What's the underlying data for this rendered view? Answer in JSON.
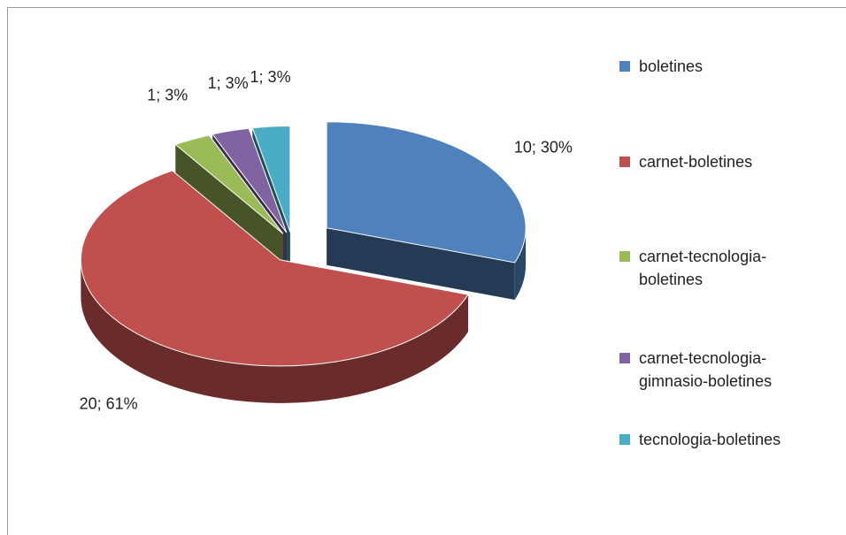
{
  "chart_data": {
    "type": "pie",
    "categories": [
      "boletines",
      "carnet-boletines",
      "carnet-tecnologia-boletines",
      "carnet-tecnologia-gimnasio-boletines",
      "tecnologia-boletines"
    ],
    "values": [
      10,
      20,
      1,
      1,
      1
    ],
    "value_labels": [
      "10; 30%",
      "20; 61%",
      "1; 3%",
      "1; 3%",
      "1; 3%"
    ],
    "colors": [
      "#4f81bd",
      "#c0504d",
      "#9bbb59",
      "#8064a2",
      "#4bacc6"
    ],
    "legend": "right"
  }
}
